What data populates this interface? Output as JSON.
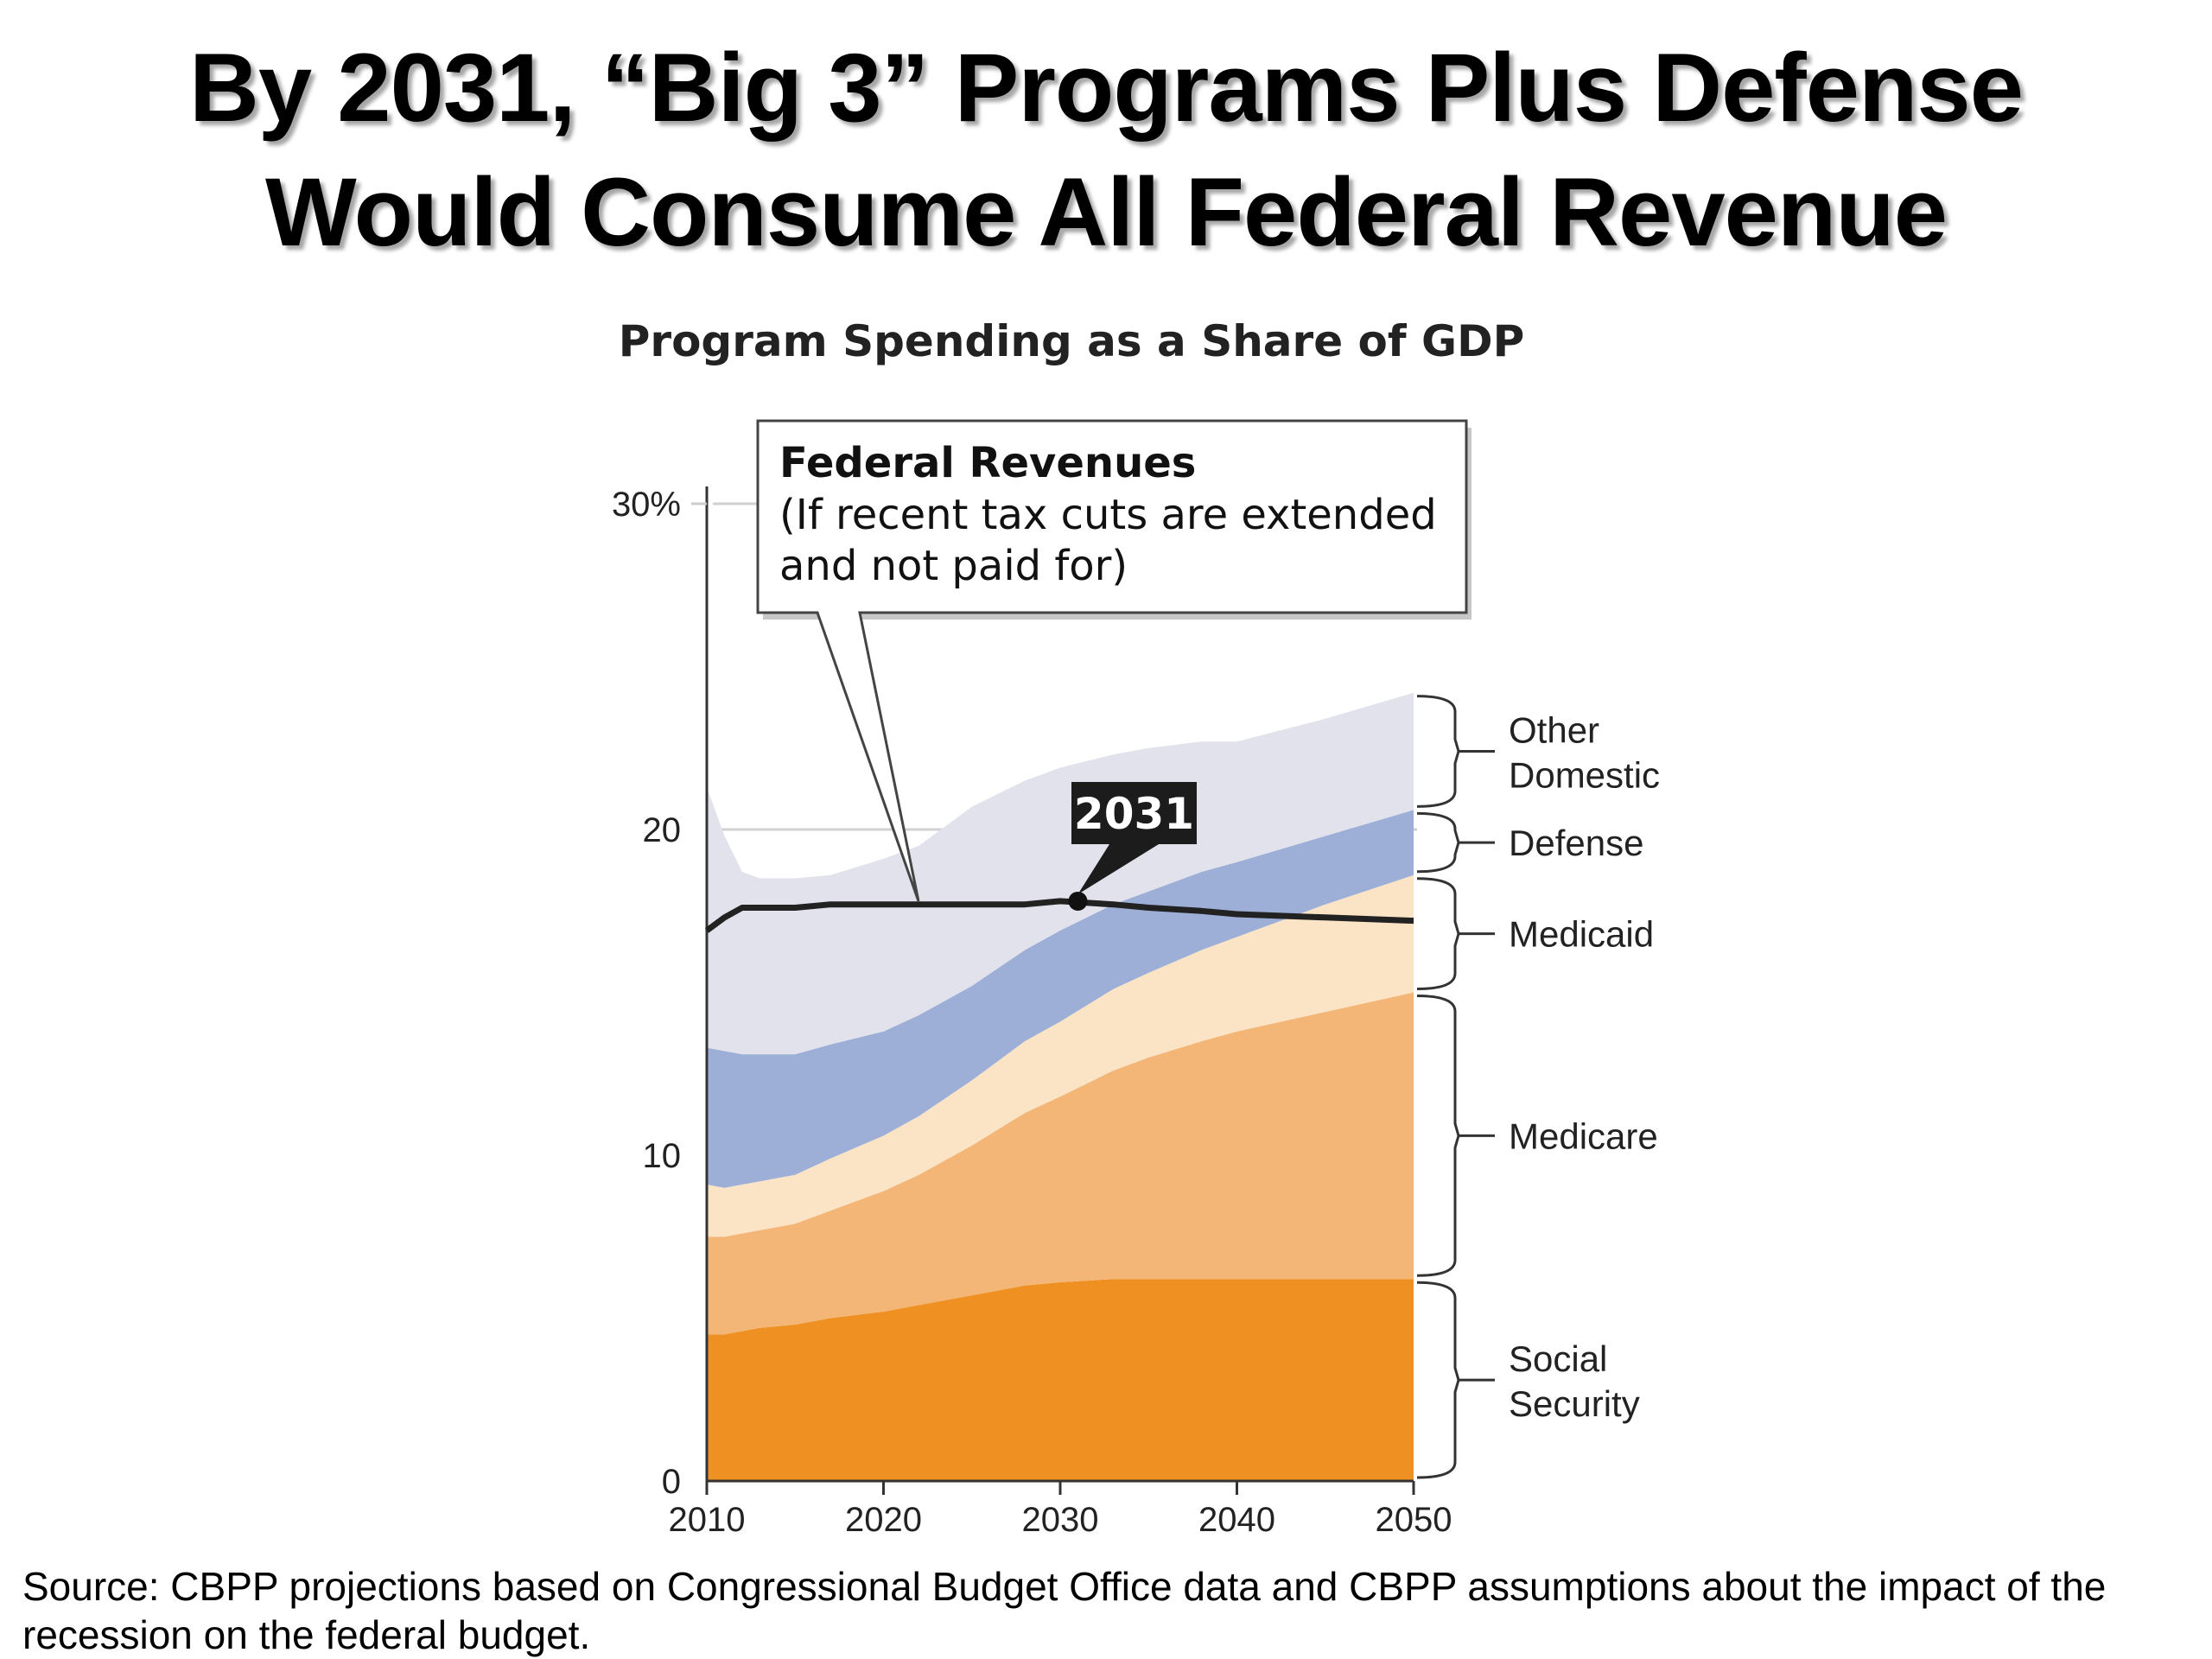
{
  "slide": {
    "title_line1": "By 2031, “Big 3” Programs Plus Defense",
    "title_line2": "Would Consume All Federal Revenue",
    "source_line1": "Source: CBPP projections based on Congressional Budget Office data and CBPP assumptions about the impact of the",
    "source_line2": "recession on the federal budget."
  },
  "chart_data": {
    "type": "area",
    "stacked": true,
    "title": "Program Spending as a Share of GDP",
    "xlabel": "",
    "ylabel": "",
    "xlim": [
      2010,
      2050
    ],
    "ylim": [
      0,
      30
    ],
    "x_ticks": [
      2010,
      2020,
      2030,
      2040,
      2050
    ],
    "x_tick_labels": [
      "2010",
      "2020",
      "2030",
      "2040",
      "2050"
    ],
    "y_ticks": [
      0,
      10,
      20,
      30
    ],
    "y_tick_labels": [
      "0",
      "10",
      "20",
      "30%"
    ],
    "grid": "horizontal lines at 20 and 30 only",
    "legend_placement": "right-side brackets",
    "x": [
      2010,
      2011,
      2012,
      2013,
      2015,
      2017,
      2020,
      2022,
      2025,
      2028,
      2030,
      2033,
      2035,
      2038,
      2040,
      2045,
      2050
    ],
    "series": [
      {
        "name": "Social Security",
        "color": "#ee9122",
        "values": [
          4.5,
          4.5,
          4.6,
          4.7,
          4.8,
          5.0,
          5.2,
          5.4,
          5.7,
          6.0,
          6.1,
          6.2,
          6.2,
          6.2,
          6.2,
          6.2,
          6.2
        ]
      },
      {
        "name": "Medicare",
        "color": "#f3b677",
        "values": [
          3.0,
          3.0,
          3.0,
          3.0,
          3.1,
          3.3,
          3.7,
          4.0,
          4.6,
          5.3,
          5.7,
          6.4,
          6.8,
          7.3,
          7.6,
          8.2,
          8.8
        ]
      },
      {
        "name": "Medicaid",
        "color": "#fbe3c6",
        "values": [
          1.6,
          1.5,
          1.5,
          1.5,
          1.5,
          1.6,
          1.7,
          1.8,
          2.0,
          2.2,
          2.3,
          2.5,
          2.6,
          2.8,
          2.9,
          3.3,
          3.6
        ]
      },
      {
        "name": "Defense",
        "color": "#9dafd6",
        "values": [
          4.2,
          4.2,
          4.0,
          3.9,
          3.7,
          3.5,
          3.2,
          3.1,
          2.9,
          2.8,
          2.8,
          2.6,
          2.5,
          2.4,
          2.3,
          2.1,
          2.0
        ]
      },
      {
        "name": "Other Domestic",
        "color": "#e2e2ec",
        "values": [
          8.0,
          6.6,
          5.6,
          5.4,
          5.4,
          5.2,
          5.3,
          5.2,
          5.5,
          5.2,
          5.0,
          4.6,
          4.4,
          4.0,
          3.7,
          3.6,
          3.6
        ]
      }
    ],
    "federal_revenues": {
      "label_bold": "Federal Revenues",
      "label_line2": "(If recent tax cuts are extended",
      "label_line3": "and not paid for)",
      "color": "#222222",
      "values": [
        16.9,
        17.3,
        17.6,
        17.6,
        17.6,
        17.7,
        17.7,
        17.7,
        17.7,
        17.7,
        17.8,
        17.7,
        17.6,
        17.5,
        17.4,
        17.3,
        17.2
      ]
    },
    "annotation": {
      "label": "2031",
      "x": 2031,
      "y": 17.8
    },
    "legend": [
      {
        "name_line1": "Other",
        "name_line2": "Domestic"
      },
      {
        "name_line1": "Defense",
        "name_line2": ""
      },
      {
        "name_line1": "Medicaid",
        "name_line2": ""
      },
      {
        "name_line1": "Medicare",
        "name_line2": ""
      },
      {
        "name_line1": "Social",
        "name_line2": "Security"
      }
    ]
  }
}
